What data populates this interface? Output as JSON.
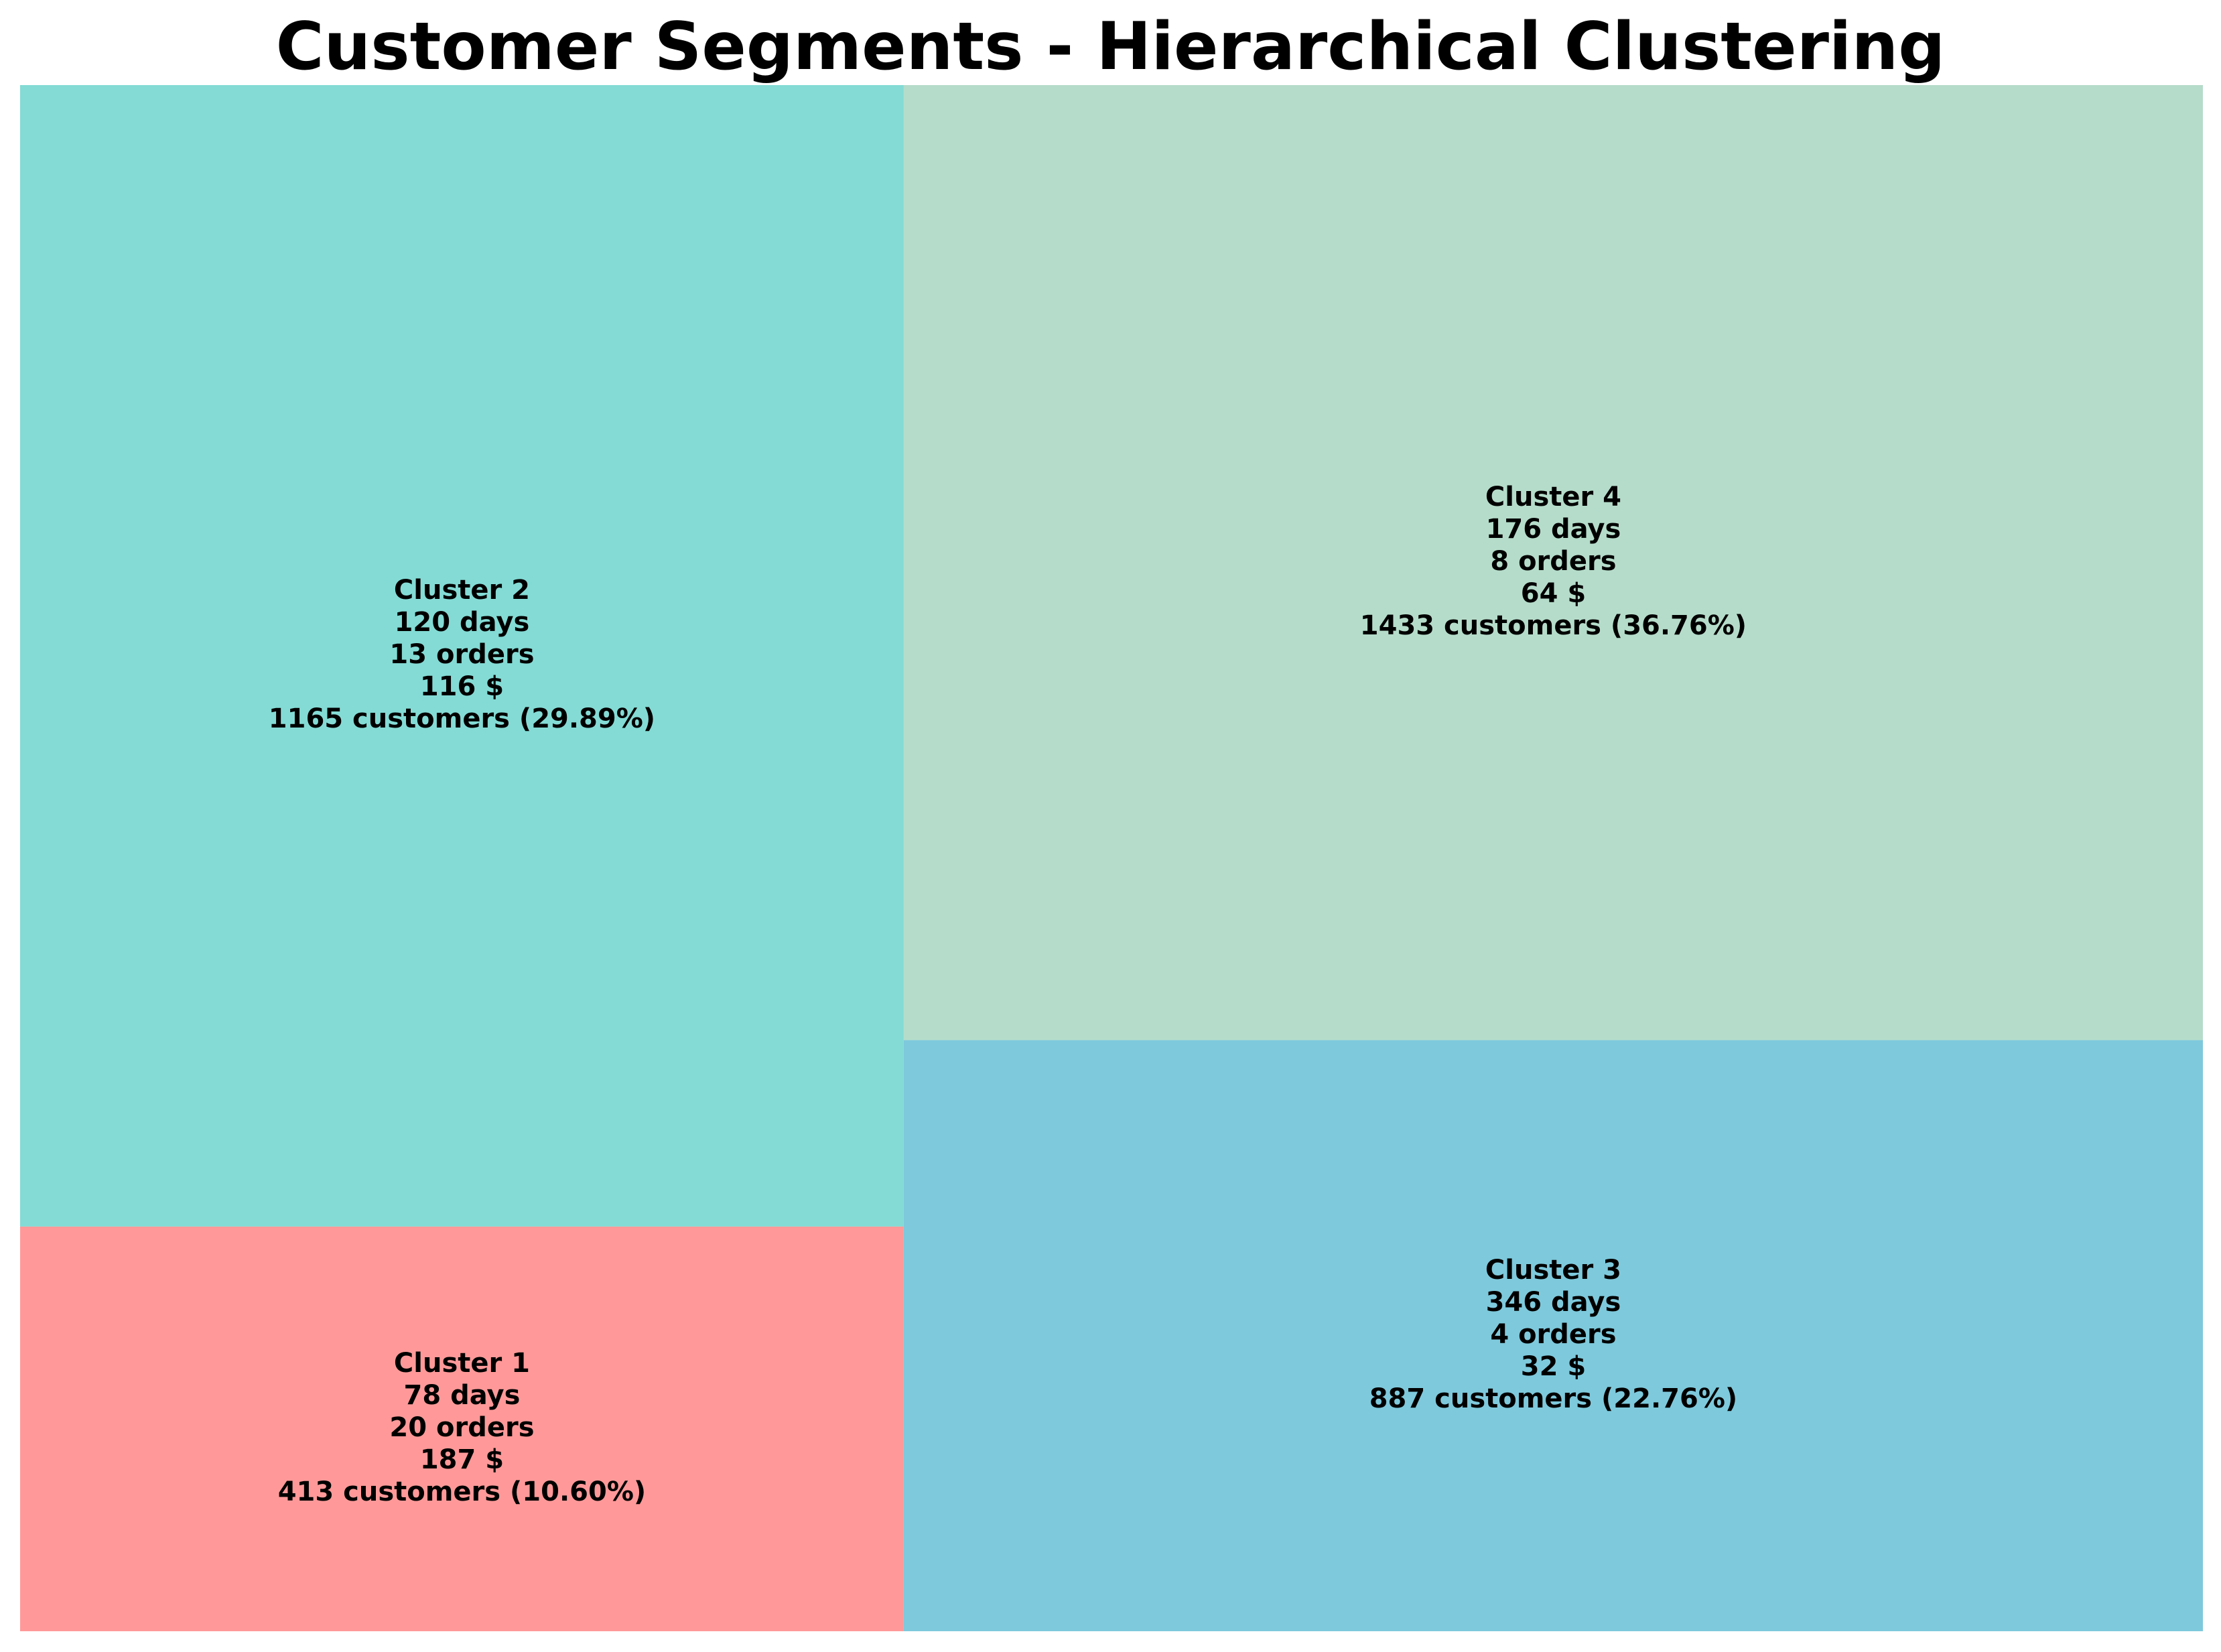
{
  "chart_data": {
    "type": "treemap",
    "title": "Customer Segments - Hierarchical Clustering",
    "tiles": [
      {
        "name": "Cluster 1",
        "recency": "78 days",
        "frequency": "20 orders",
        "monetary": "187 $",
        "customers": "413 customers (10.60%)",
        "count": 413,
        "percent": 10.6,
        "color": "#FF9999"
      },
      {
        "name": "Cluster 2",
        "recency": "120 days",
        "frequency": "13 orders",
        "monetary": "116 $",
        "customers": "1165 customers (29.89%)",
        "count": 1165,
        "percent": 29.89,
        "color": "#84DBD5"
      },
      {
        "name": "Cluster 3",
        "recency": "346 days",
        "frequency": "4 orders",
        "monetary": "32 $",
        "customers": "887 customers (22.76%)",
        "count": 887,
        "percent": 22.76,
        "color": "#7EC9DC"
      },
      {
        "name": "Cluster 4",
        "recency": "176 days",
        "frequency": "8 orders",
        "monetary": "64 $",
        "customers": "1433 customers (36.76%)",
        "count": 1433,
        "percent": 36.76,
        "color": "#B5DCCA"
      }
    ]
  }
}
